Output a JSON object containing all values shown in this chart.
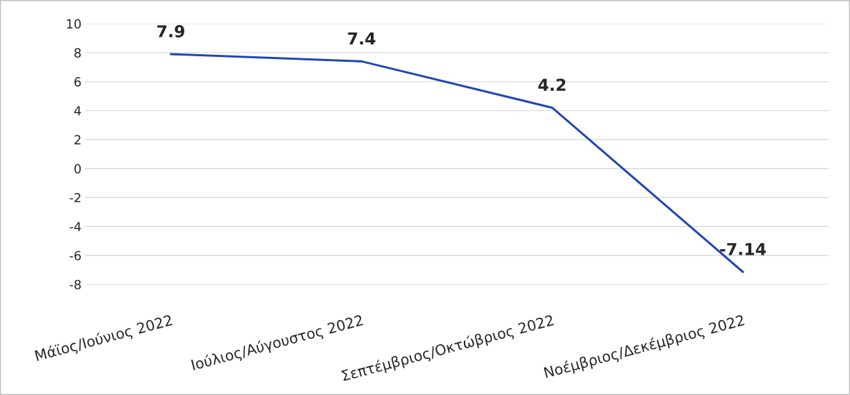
{
  "chart_data": {
    "type": "line",
    "categories": [
      "Μάϊος/Ιούνιος 2022",
      "Ιούλιος/Αύγουστος 2022",
      "Σεπτέμβριος/Οκτώβριος 2022",
      "Νοέμβριος/Δεκέμβριος 2022"
    ],
    "series": [
      {
        "color": "#1f45b8",
        "values": [
          7.9,
          7.4,
          4.2,
          -7.14
        ]
      }
    ],
    "ylim": [
      -8,
      10
    ],
    "yticks": [
      -8,
      -6,
      -4,
      -2,
      0,
      2,
      4,
      6,
      8,
      10
    ],
    "grid": "y",
    "data_labels": true,
    "marker": "none",
    "line_style": "solid"
  }
}
